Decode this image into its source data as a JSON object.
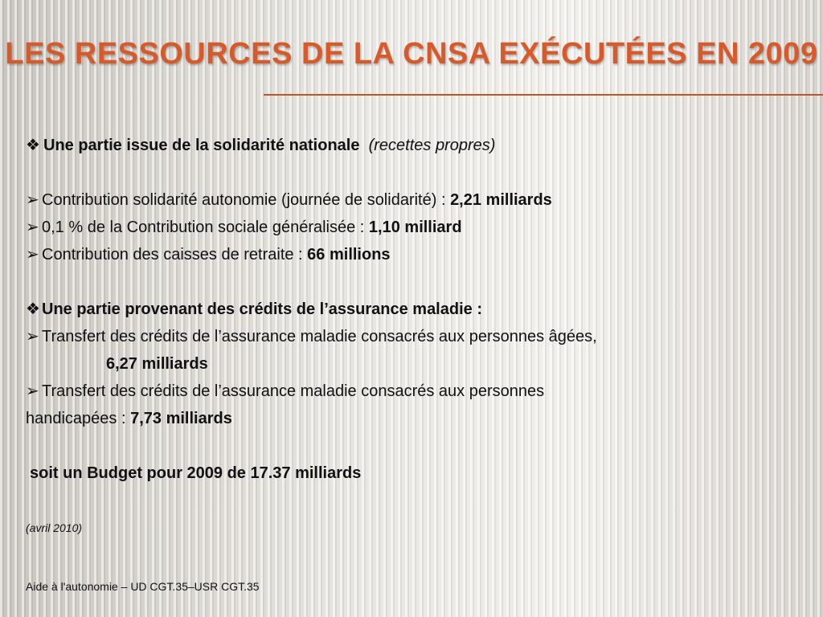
{
  "title": "LES RESSOURCES DE LA CNSA EXÉCUTÉES EN 2009",
  "colors": {
    "title": "#d75a2a",
    "rule": "#c0542a"
  },
  "icons": {
    "section_bullet": "diamond-bullet-icon",
    "item_bullet": "arrow-bullet-icon"
  },
  "section1": {
    "bullet": "❖",
    "heading": "Une partie issue de la solidarité nationale",
    "note": "(recettes propres)",
    "items": [
      {
        "arrow": "➢",
        "text": "Contribution solidarité autonomie (journée de solidarité) : ",
        "amount": "2,21 milliards"
      },
      {
        "arrow": "➢",
        "text": "0,1 % de la Contribution sociale généralisée : ",
        "amount": "1,10 milliard"
      },
      {
        "arrow": "➢",
        "text": "Contribution des caisses de retraite : ",
        "amount": "66 millions"
      }
    ]
  },
  "section2": {
    "bullet": "❖",
    "heading": "Une partie provenant des crédits de l’assurance maladie :",
    "item1": {
      "arrow": "➢",
      "text": "Transfert des crédits de l’assurance maladie consacrés aux personnes âgées,",
      "amount": "6,27 milliards"
    },
    "item2": {
      "arrow": "➢",
      "text_line1": "Transfert des crédits de l’assurance maladie consacrés aux personnes",
      "text_line2": "handicapées : ",
      "amount": "7,73 milliards"
    }
  },
  "total": "soit un Budget pour 2009 de 17.37 milliards",
  "date_note": "(avril 2010)",
  "footer": "Aide à l'autonomie – UD CGT.35–USR CGT.35"
}
